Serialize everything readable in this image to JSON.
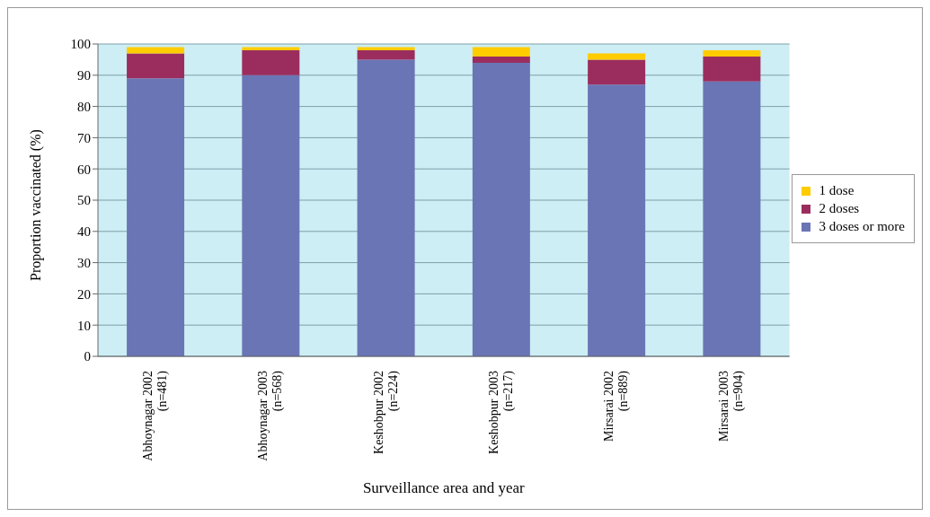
{
  "chart_data": {
    "type": "bar",
    "stacked": true,
    "xlabel": "Surveillance area and year",
    "ylabel": "Proportion vaccinated (%)",
    "categories": [
      "Abhoynagar 2002\n(n=481)",
      "Abhoynagar 2003\n(n=568)",
      "Keshobpur 2002\n(n=224)",
      "Keshobpur 2003\n(n=217)",
      "Mirsarai 2002\n(n=889)",
      "Mirsarai 2003\n(n=904)"
    ],
    "series": [
      {
        "name": "3 doses or more",
        "color": "#6a75b5",
        "values": [
          89,
          90,
          95,
          94,
          87,
          88
        ]
      },
      {
        "name": "2 doses",
        "color": "#9b2d5e",
        "values": [
          8,
          8,
          3,
          2,
          8,
          8
        ]
      },
      {
        "name": "1 dose",
        "color": "#ffcc00",
        "values": [
          2,
          1,
          1,
          3,
          2,
          2
        ]
      }
    ],
    "ylim": [
      0,
      100
    ],
    "yticks": [
      0,
      10,
      20,
      30,
      40,
      50,
      60,
      70,
      80,
      90,
      100
    ],
    "grid": "y",
    "legend": "right"
  }
}
